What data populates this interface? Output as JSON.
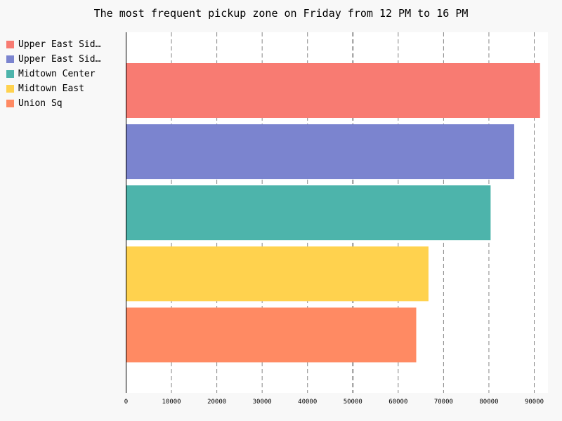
{
  "chart_data": {
    "type": "bar",
    "orientation": "horizontal",
    "title": "The most frequent pickup zone on Friday from 12 PM to 16 PM",
    "categories": [
      "Upper East Sid…",
      "Upper East Sid…",
      "Midtown Center",
      "Midtown East",
      "Union Sq"
    ],
    "values": [
      91200,
      85500,
      80300,
      66600,
      63900
    ],
    "colors": [
      "#f87b72",
      "#7b84cf",
      "#4db4ab",
      "#ffd24e",
      "#ff8a63"
    ],
    "xlim": [
      0,
      93000
    ],
    "xticks": [
      "0",
      "10000",
      "20000",
      "30000",
      "40000",
      "50000",
      "60000",
      "70000",
      "80000",
      "90000"
    ],
    "xtick_values": [
      0,
      10000,
      20000,
      30000,
      40000,
      50000,
      60000,
      70000,
      80000,
      90000
    ],
    "grid": true,
    "legend_position": "top-left"
  }
}
